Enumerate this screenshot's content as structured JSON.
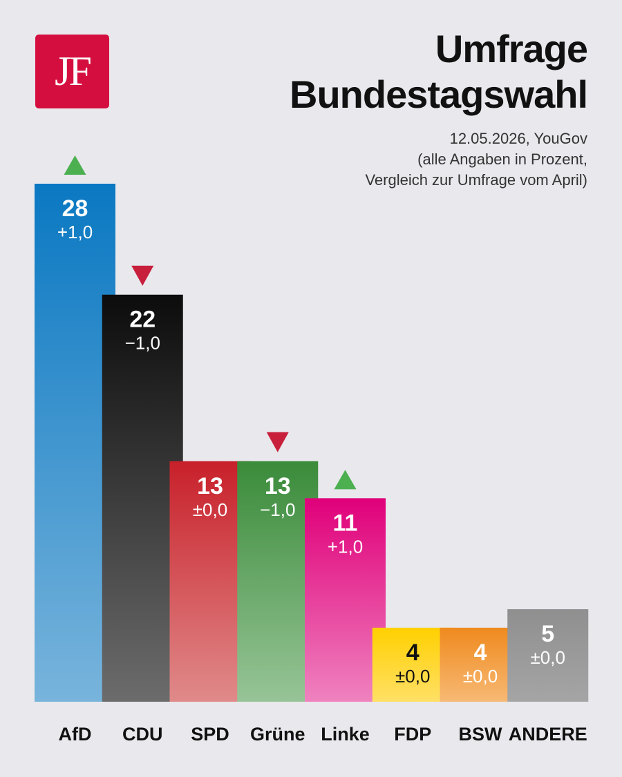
{
  "logo": {
    "text": "JF"
  },
  "title": {
    "line1": "Umfrage",
    "line2": "Bundestagswahl"
  },
  "subtitle": {
    "line1": "12.05.2026, YouGov",
    "line2": "(alle Angaben in Prozent,",
    "line3": "Vergleich zur Umfrage vom April)"
  },
  "chart_data": {
    "type": "bar",
    "title": "Umfrage Bundestagswahl",
    "categories": [
      "AfD",
      "CDU",
      "SPD",
      "Grüne",
      "Linke",
      "FDP",
      "BSW",
      "ANDERE"
    ],
    "values": [
      28,
      22,
      13,
      13,
      11,
      4,
      4,
      5
    ],
    "changes": [
      "+1,0",
      "−1,0",
      "±0,0",
      "−1,0",
      "+1,0",
      "±0,0",
      "±0,0",
      "±0,0"
    ],
    "trend": [
      "up",
      "down",
      "none",
      "down",
      "up",
      "none",
      "none",
      "none"
    ],
    "colors": [
      "#0a78c2",
      "#0c0c0c",
      "#c8202a",
      "#3a8b3a",
      "#e0007a",
      "#ffd000",
      "#ef8a1e",
      "#8f8f8f"
    ],
    "fade_colors": [
      "#78b4dc",
      "#6c6c6c",
      "#e08a8a",
      "#97c497",
      "#ef82bf",
      "#ffe066",
      "#f7b974",
      "#a5a5a5"
    ],
    "value_text_colors": [
      "#ffffff",
      "#ffffff",
      "#ffffff",
      "#ffffff",
      "#ffffff",
      "#111111",
      "#ffffff",
      "#ffffff"
    ],
    "up_color": "#4caf50",
    "down_color": "#c8203c",
    "ylim": [
      0,
      28
    ],
    "grid": false,
    "legend": "none",
    "xlabel": "",
    "ylabel": ""
  }
}
